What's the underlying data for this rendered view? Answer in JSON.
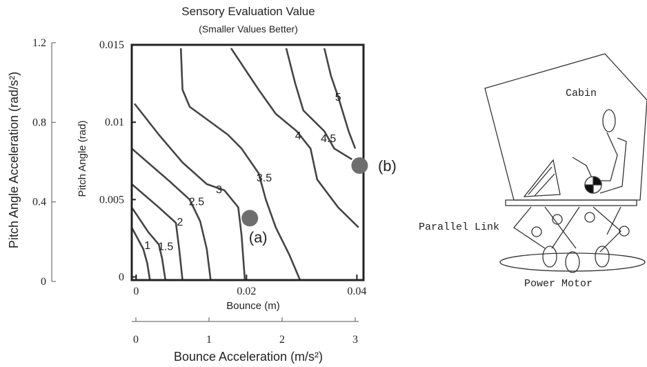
{
  "chart_data": {
    "type": "contour",
    "title": "Sensory Evaluation Value",
    "subtitle": "(Smaller Values Better)",
    "x_label": "Bounce (m)",
    "y_label": "Pitch Angle (rad)",
    "xlim": [
      -0.0008,
      0.0412
    ],
    "ylim": [
      -0.0002,
      0.015
    ],
    "xticks": [
      0,
      0.02,
      0.04
    ],
    "yticks": [
      0,
      0.005,
      0.01,
      0.015
    ],
    "y2_label": "Pitch Angle Acceleration (rad/s²)",
    "y2lim": [
      0,
      1.2
    ],
    "y2ticks": [
      0,
      0.4,
      0.8,
      1.2
    ],
    "x2_label": "Bounce Acceleration (m/s²)",
    "x2lim": [
      0,
      3
    ],
    "x2ticks": [
      0,
      1,
      2,
      3
    ],
    "line_color": "#444444",
    "point_color": "#6e6e6e",
    "contours": [
      {
        "level": 1,
        "x": [
          -0.0008,
          0.0013,
          0.002,
          0.0025
        ],
        "y": [
          0.0032,
          0.0018,
          0.0009,
          -0.0002
        ]
      },
      {
        "level": 1.5,
        "x": [
          -0.0008,
          0.0022,
          0.0041,
          0.0047,
          0.0053
        ],
        "y": [
          0.0045,
          0.0029,
          0.0021,
          0.0012,
          -0.0002
        ]
      },
      {
        "level": 2,
        "x": [
          -0.0008,
          0.0041,
          0.0072,
          0.0078,
          0.0084
        ],
        "y": [
          0.006,
          0.0045,
          0.0035,
          0.0018,
          -0.0002
        ]
      },
      {
        "level": 2.5,
        "x": [
          -0.0008,
          0.006,
          0.0097,
          0.0116,
          0.0128,
          0.0135
        ],
        "y": [
          0.0083,
          0.0062,
          0.005,
          0.0036,
          0.0018,
          -0.0002
        ]
      },
      {
        "level": 3,
        "x": [
          -0.0003,
          0.0041,
          0.0084,
          0.0128,
          0.016,
          0.0185,
          0.0191,
          0.0197
        ],
        "y": [
          0.0112,
          0.0092,
          0.0074,
          0.006,
          0.0056,
          0.0045,
          0.0027,
          -0.0002
        ]
      },
      {
        "level": 3.5,
        "x": [
          0.0081,
          0.0084,
          0.0097,
          0.0166,
          0.0191,
          0.0222,
          0.0235,
          0.0253,
          0.0278,
          0.0297
        ],
        "y": [
          0.01478,
          0.0121,
          0.011,
          0.0092,
          0.0083,
          0.0067,
          0.005,
          0.0032,
          0.0014,
          -0.0002
        ]
      },
      {
        "level": 4,
        "x": [
          0.0172,
          0.0222,
          0.0253,
          0.0291,
          0.0316,
          0.0328,
          0.0366,
          0.0403
        ],
        "y": [
          0.01478,
          0.0121,
          0.01054,
          0.00942,
          0.0083,
          0.0063,
          0.0045,
          0.0032
        ]
      },
      {
        "level": 4.5,
        "x": [
          0.0272,
          0.0288,
          0.0303,
          0.0341,
          0.0359,
          0.0391
        ],
        "y": [
          0.01478,
          0.01254,
          0.01076,
          0.00942,
          0.0083,
          0.0076
        ]
      },
      {
        "level": 5,
        "x": [
          0.0341,
          0.0353,
          0.0366,
          0.0385,
          0.0397
        ],
        "y": [
          0.01478,
          0.013,
          0.01165,
          0.00942,
          0.0083
        ]
      }
    ],
    "points": [
      {
        "label": "(a)",
        "x": 0.0206,
        "y": 0.0038
      },
      {
        "label": "(b)",
        "x": 0.0405,
        "y": 0.0072
      }
    ]
  },
  "diagram": {
    "labels": [
      "Cabin",
      "Parallel Link",
      "Power Motor"
    ]
  }
}
